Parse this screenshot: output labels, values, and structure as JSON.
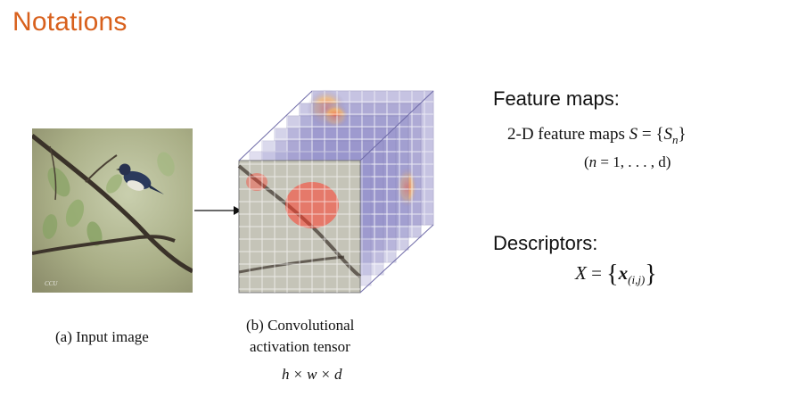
{
  "slide": {
    "title": "Notations"
  },
  "captions": {
    "input": "(a) Input image",
    "tensor_line1": "(b) Convolutional",
    "tensor_line2": "activation tensor",
    "dims_h": "h",
    "dims_times": "×",
    "dims_w": "w",
    "dims_d": "d"
  },
  "feature_maps": {
    "heading": "Feature maps:",
    "prefix": "2-D feature maps",
    "symbol": "S",
    "set_var": "S",
    "set_sub": "n",
    "range_var": "n",
    "range_rest": "= 1, . . . , d)"
  },
  "descriptors": {
    "heading": "Descriptors:",
    "symbol": "X",
    "vector": "x",
    "sub": "(i,j)"
  },
  "icons": {
    "photo": "bird-on-branch-photo",
    "arrow": "right-arrow-icon"
  },
  "colors": {
    "title": "#d8601c",
    "tensor_layer": "#8a86c4"
  }
}
